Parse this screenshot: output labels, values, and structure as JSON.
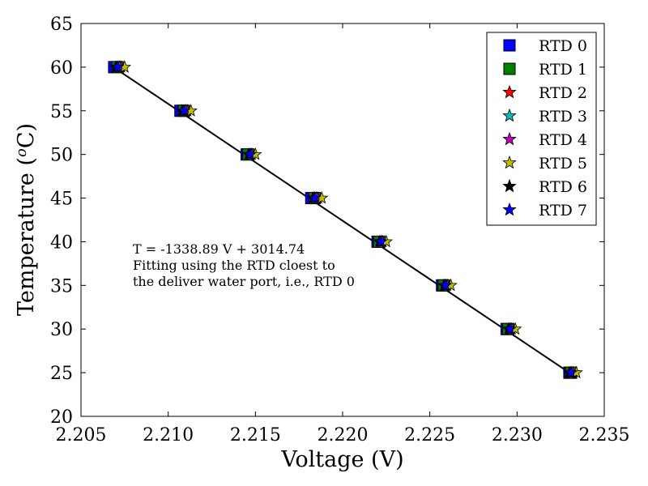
{
  "chart_data": {
    "type": "scatter",
    "title": "",
    "xlabel": "Voltage (V)",
    "ylabel_main": "Temperature (",
    "ylabel_sup": "o",
    "ylabel_tail": "C)",
    "xlim": [
      2.205,
      2.235
    ],
    "ylim": [
      20,
      65
    ],
    "xticks": [
      2.205,
      2.21,
      2.215,
      2.22,
      2.225,
      2.23,
      2.235
    ],
    "xtick_labels": [
      "2.205",
      "2.210",
      "2.215",
      "2.220",
      "2.225",
      "2.230",
      "2.235"
    ],
    "yticks": [
      20,
      25,
      30,
      35,
      40,
      45,
      50,
      55,
      60,
      65
    ],
    "ytick_labels": [
      "20",
      "25",
      "30",
      "35",
      "40",
      "45",
      "50",
      "55",
      "60",
      "65"
    ],
    "grid": false,
    "legend_position": "top-right",
    "temperatures": [
      60,
      55,
      50,
      45,
      40,
      35,
      30,
      25
    ],
    "series": [
      {
        "name": "RTD 0",
        "marker": "square",
        "color": "#0000ff",
        "x": [
          2.2069,
          2.2107,
          2.2145,
          2.2182,
          2.222,
          2.2257,
          2.2294,
          2.233
        ]
      },
      {
        "name": "RTD 1",
        "marker": "square",
        "color": "#008000",
        "x": [
          2.2071,
          2.2109,
          2.2146,
          2.2184,
          2.2221,
          2.2258,
          2.2295,
          2.2331
        ]
      },
      {
        "name": "RTD 2",
        "marker": "star",
        "color": "#ff0000",
        "x": [
          2.2072,
          2.211,
          2.2147,
          2.2185,
          2.2222,
          2.2259,
          2.2296,
          2.2331
        ]
      },
      {
        "name": "RTD 3",
        "marker": "star",
        "color": "#00bfbf",
        "x": [
          2.2072,
          2.211,
          2.2147,
          2.2185,
          2.2222,
          2.2259,
          2.2296,
          2.2331
        ]
      },
      {
        "name": "RTD 4",
        "marker": "star",
        "color": "#bf00bf",
        "x": [
          2.2073,
          2.2111,
          2.2148,
          2.2186,
          2.2223,
          2.226,
          2.2297,
          2.2332
        ]
      },
      {
        "name": "RTD 5",
        "marker": "star",
        "color": "#bfbf00",
        "x": [
          2.2075,
          2.2113,
          2.215,
          2.2188,
          2.2225,
          2.2262,
          2.2299,
          2.2334
        ]
      },
      {
        "name": "RTD 6",
        "marker": "star",
        "color": "#000000",
        "x": [
          2.207,
          2.2108,
          2.2146,
          2.2183,
          2.2221,
          2.2258,
          2.2295,
          2.233
        ]
      },
      {
        "name": "RTD 7",
        "marker": "star",
        "color": "#0000ff",
        "x": [
          2.2071,
          2.2109,
          2.2147,
          2.2184,
          2.2222,
          2.2259,
          2.2296,
          2.2331
        ]
      }
    ],
    "fit_line": {
      "slope": -1338.89,
      "intercept": 3014.74,
      "color": "#000000",
      "x_range": [
        2.207,
        2.2331
      ]
    },
    "annotation_lines": [
      "T = -1338.89 V + 3014.74",
      "Fitting using the RTD cloest to",
      "the deliver water port, i.e., RTD 0"
    ]
  }
}
